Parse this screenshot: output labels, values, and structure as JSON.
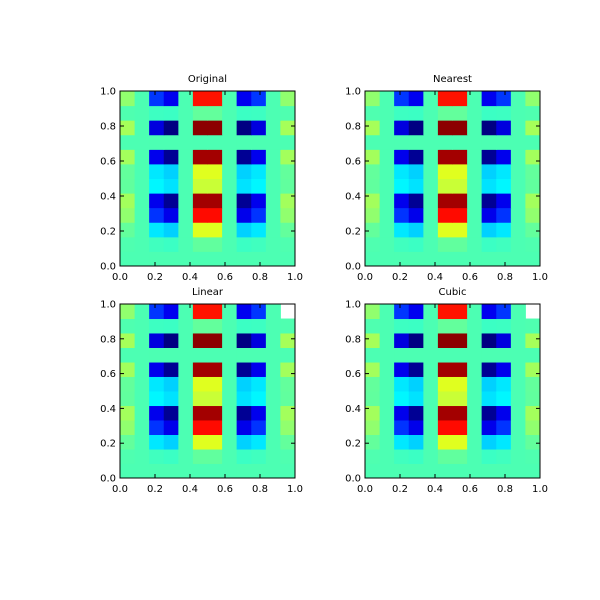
{
  "chart_data": [
    {
      "type": "heatmap",
      "title": "Original",
      "colormap": "jet",
      "zlim": [
        -0.18,
        0.22
      ],
      "x": [
        0.042,
        0.125,
        0.208,
        0.292,
        0.375,
        0.458,
        0.542,
        0.625,
        0.708,
        0.792,
        0.875,
        0.958
      ],
      "y": [
        0.042,
        0.125,
        0.208,
        0.292,
        0.375,
        0.458,
        0.542,
        0.625,
        0.708,
        0.792,
        0.875,
        0.958
      ],
      "z": [
        [
          0,
          0,
          0,
          0,
          0,
          0,
          0,
          0,
          0,
          0,
          0,
          0
        ],
        [
          0.001,
          0,
          -0.005,
          -0.007,
          0,
          0.008,
          0.008,
          0,
          -0.007,
          -0.005,
          0,
          0.001
        ],
        [
          0.009,
          0,
          -0.039,
          -0.048,
          0,
          0.058,
          0.058,
          0,
          -0.048,
          -0.039,
          0,
          0.009
        ],
        [
          0.027,
          0,
          -0.11,
          -0.138,
          0,
          0.166,
          0.166,
          0,
          -0.138,
          -0.11,
          0,
          0.027
        ],
        [
          0.034,
          0,
          -0.137,
          -0.172,
          0,
          0.206,
          0.206,
          0,
          -0.172,
          -0.137,
          0,
          0.034
        ],
        [
          0.008,
          0,
          -0.033,
          -0.041,
          0,
          0.049,
          0.049,
          0,
          -0.041,
          -0.033,
          0,
          0.008
        ],
        [
          0.009,
          0,
          -0.039,
          -0.048,
          0,
          0.058,
          0.058,
          0,
          -0.048,
          -0.039,
          0,
          0.009
        ],
        [
          0.034,
          0,
          -0.137,
          -0.172,
          0,
          0.206,
          0.206,
          0,
          -0.172,
          -0.137,
          0,
          0.034
        ],
        [
          0,
          0,
          0,
          0,
          0,
          0,
          0,
          0,
          0,
          0,
          0,
          0
        ],
        [
          0.035,
          0,
          -0.143,
          -0.179,
          0,
          0.215,
          0.215,
          0,
          -0.179,
          -0.143,
          0,
          0.035
        ],
        [
          0.001,
          0,
          -0.006,
          -0.007,
          0,
          0.009,
          0.009,
          0,
          -0.007,
          -0.006,
          0,
          0.001
        ],
        [
          0.027,
          0,
          -0.109,
          -0.136,
          0,
          0.163,
          0.163,
          0,
          -0.136,
          -0.109,
          0,
          0.027
        ]
      ],
      "xlim": [
        0,
        1
      ],
      "ylim": [
        0,
        1
      ],
      "xticks": [
        {
          "value": 0,
          "label": "0.0"
        },
        {
          "value": 0.2,
          "label": "0.2"
        },
        {
          "value": 0.4,
          "label": "0.4"
        },
        {
          "value": 0.6,
          "label": "0.6"
        },
        {
          "value": 0.8,
          "label": "0.8"
        },
        {
          "value": 1,
          "label": "1.0"
        }
      ],
      "yticks": [
        {
          "value": 0,
          "label": "0.0"
        },
        {
          "value": 0.2,
          "label": "0.2"
        },
        {
          "value": 0.4,
          "label": "0.4"
        },
        {
          "value": 0.6,
          "label": "0.6"
        },
        {
          "value": 0.8,
          "label": "0.8"
        },
        {
          "value": 1,
          "label": "1.0"
        }
      ]
    },
    {
      "type": "heatmap",
      "title": "Nearest",
      "colormap": "jet",
      "zlim": [
        -0.18,
        0.22
      ],
      "x": [
        0.042,
        0.125,
        0.208,
        0.292,
        0.375,
        0.458,
        0.542,
        0.625,
        0.708,
        0.792,
        0.875,
        0.958
      ],
      "y": [
        0.042,
        0.125,
        0.208,
        0.292,
        0.375,
        0.458,
        0.542,
        0.625,
        0.708,
        0.792,
        0.875,
        0.958
      ],
      "z": [
        [
          0,
          0,
          0,
          0,
          0,
          0,
          0,
          0,
          0,
          0,
          0,
          0
        ],
        [
          0.001,
          0,
          -0.005,
          -0.007,
          0,
          0.008,
          0.008,
          0,
          -0.007,
          -0.005,
          0,
          0.001
        ],
        [
          0.009,
          0,
          -0.039,
          -0.048,
          0,
          0.058,
          0.058,
          0,
          -0.048,
          -0.039,
          0,
          0.009
        ],
        [
          0.027,
          0,
          -0.11,
          -0.138,
          0,
          0.166,
          0.166,
          0,
          -0.138,
          -0.11,
          0,
          0.027
        ],
        [
          0.034,
          0,
          -0.137,
          -0.172,
          0,
          0.206,
          0.206,
          0,
          -0.172,
          -0.137,
          0,
          0.034
        ],
        [
          0.008,
          0,
          -0.033,
          -0.041,
          0,
          0.049,
          0.049,
          0,
          -0.041,
          -0.033,
          0,
          0.008
        ],
        [
          0.009,
          0,
          -0.039,
          -0.048,
          0,
          0.058,
          0.058,
          0,
          -0.048,
          -0.039,
          0,
          0.009
        ],
        [
          0.034,
          0,
          -0.137,
          -0.172,
          0,
          0.206,
          0.206,
          0,
          -0.172,
          -0.137,
          0,
          0.034
        ],
        [
          0,
          0,
          0,
          0,
          0,
          0,
          0,
          0,
          0,
          0,
          0,
          0
        ],
        [
          0.035,
          0,
          -0.143,
          -0.179,
          0,
          0.215,
          0.215,
          0,
          -0.179,
          -0.143,
          0,
          0.035
        ],
        [
          0.001,
          0,
          -0.006,
          -0.007,
          0,
          0.009,
          0.009,
          0,
          -0.007,
          -0.006,
          0,
          0.001
        ],
        [
          0.027,
          0,
          -0.109,
          -0.136,
          0,
          0.163,
          0.163,
          0,
          -0.136,
          -0.109,
          0,
          0.027
        ]
      ],
      "xlim": [
        0,
        1
      ],
      "ylim": [
        0,
        1
      ],
      "xticks": [
        {
          "value": 0,
          "label": "0.0"
        },
        {
          "value": 0.2,
          "label": "0.2"
        },
        {
          "value": 0.4,
          "label": "0.4"
        },
        {
          "value": 0.6,
          "label": "0.6"
        },
        {
          "value": 0.8,
          "label": "0.8"
        },
        {
          "value": 1,
          "label": "1.0"
        }
      ],
      "yticks": [
        {
          "value": 0,
          "label": "0.0"
        },
        {
          "value": 0.2,
          "label": "0.2"
        },
        {
          "value": 0.4,
          "label": "0.4"
        },
        {
          "value": 0.6,
          "label": "0.6"
        },
        {
          "value": 0.8,
          "label": "0.8"
        },
        {
          "value": 1,
          "label": "1.0"
        }
      ]
    },
    {
      "type": "heatmap",
      "title": "Linear",
      "colormap": "jet",
      "zlim": [
        -0.18,
        0.22
      ],
      "x": [
        0.042,
        0.125,
        0.208,
        0.292,
        0.375,
        0.458,
        0.542,
        0.625,
        0.708,
        0.792,
        0.875,
        0.958
      ],
      "y": [
        0.042,
        0.125,
        0.208,
        0.292,
        0.375,
        0.458,
        0.542,
        0.625,
        0.708,
        0.792,
        0.875,
        0.958
      ],
      "z": [
        [
          0,
          0,
          0,
          0,
          0,
          0,
          0,
          0,
          0,
          0,
          0,
          0
        ],
        [
          0.001,
          0,
          -0.005,
          -0.007,
          0,
          0.008,
          0.008,
          0,
          -0.007,
          -0.005,
          0,
          0.001
        ],
        [
          0.009,
          0,
          -0.039,
          -0.048,
          0,
          0.058,
          0.058,
          0,
          -0.048,
          -0.039,
          0,
          0.009
        ],
        [
          0.027,
          0,
          -0.11,
          -0.138,
          0,
          0.166,
          0.166,
          0,
          -0.138,
          -0.11,
          0,
          0.027
        ],
        [
          0.034,
          0,
          -0.137,
          -0.172,
          0,
          0.206,
          0.206,
          0,
          -0.172,
          -0.137,
          0,
          0.034
        ],
        [
          0.008,
          0,
          -0.033,
          -0.041,
          0,
          0.049,
          0.049,
          0,
          -0.041,
          -0.033,
          0,
          0.008
        ],
        [
          0.009,
          0,
          -0.039,
          -0.048,
          0,
          0.058,
          0.058,
          0,
          -0.048,
          -0.039,
          0,
          0.009
        ],
        [
          0.034,
          0,
          -0.137,
          -0.172,
          0,
          0.206,
          0.206,
          0,
          -0.172,
          -0.137,
          0,
          0.034
        ],
        [
          0,
          0,
          0,
          0,
          0,
          0,
          0,
          0,
          0,
          0,
          0,
          0
        ],
        [
          0.035,
          0,
          -0.143,
          -0.179,
          0,
          0.215,
          0.215,
          0,
          -0.179,
          -0.143,
          0,
          0.035
        ],
        [
          0.001,
          0,
          -0.006,
          -0.007,
          0,
          0.009,
          0.009,
          0,
          -0.007,
          -0.006,
          0,
          0.001
        ],
        [
          0.027,
          0,
          -0.109,
          -0.136,
          0,
          0.163,
          0.163,
          0,
          -0.136,
          -0.109,
          0,
          null
        ]
      ],
      "xlim": [
        0,
        1
      ],
      "ylim": [
        0,
        1
      ],
      "xticks": [
        {
          "value": 0,
          "label": "0.0"
        },
        {
          "value": 0.2,
          "label": "0.2"
        },
        {
          "value": 0.4,
          "label": "0.4"
        },
        {
          "value": 0.6,
          "label": "0.6"
        },
        {
          "value": 0.8,
          "label": "0.8"
        },
        {
          "value": 1,
          "label": "1.0"
        }
      ],
      "yticks": [
        {
          "value": 0,
          "label": "0.0"
        },
        {
          "value": 0.2,
          "label": "0.2"
        },
        {
          "value": 0.4,
          "label": "0.4"
        },
        {
          "value": 0.6,
          "label": "0.6"
        },
        {
          "value": 0.8,
          "label": "0.8"
        },
        {
          "value": 1,
          "label": "1.0"
        }
      ]
    },
    {
      "type": "heatmap",
      "title": "Cubic",
      "colormap": "jet",
      "zlim": [
        -0.18,
        0.22
      ],
      "x": [
        0.042,
        0.125,
        0.208,
        0.292,
        0.375,
        0.458,
        0.542,
        0.625,
        0.708,
        0.792,
        0.875,
        0.958
      ],
      "y": [
        0.042,
        0.125,
        0.208,
        0.292,
        0.375,
        0.458,
        0.542,
        0.625,
        0.708,
        0.792,
        0.875,
        0.958
      ],
      "z": [
        [
          0,
          0,
          0,
          0,
          0,
          0,
          0,
          0,
          0,
          0,
          0,
          0
        ],
        [
          0.001,
          0,
          -0.005,
          -0.007,
          0,
          0.008,
          0.008,
          0,
          -0.007,
          -0.005,
          0,
          0.001
        ],
        [
          0.009,
          0,
          -0.039,
          -0.048,
          0,
          0.058,
          0.058,
          0,
          -0.048,
          -0.039,
          0,
          0.009
        ],
        [
          0.027,
          0,
          -0.11,
          -0.138,
          0,
          0.166,
          0.166,
          0,
          -0.138,
          -0.11,
          0,
          0.027
        ],
        [
          0.034,
          0,
          -0.137,
          -0.172,
          0,
          0.206,
          0.206,
          0,
          -0.172,
          -0.137,
          0,
          0.034
        ],
        [
          0.008,
          0,
          -0.033,
          -0.041,
          0,
          0.049,
          0.049,
          0,
          -0.041,
          -0.033,
          0,
          0.008
        ],
        [
          0.009,
          0,
          -0.039,
          -0.048,
          0,
          0.058,
          0.058,
          0,
          -0.048,
          -0.039,
          0,
          0.009
        ],
        [
          0.034,
          0,
          -0.137,
          -0.172,
          0,
          0.206,
          0.206,
          0,
          -0.172,
          -0.137,
          0,
          0.034
        ],
        [
          0,
          0,
          0,
          0,
          0,
          0,
          0,
          0,
          0,
          0,
          0,
          0
        ],
        [
          0.035,
          0,
          -0.143,
          -0.179,
          0,
          0.215,
          0.215,
          0,
          -0.179,
          -0.143,
          0,
          0.035
        ],
        [
          0.001,
          0,
          -0.006,
          -0.007,
          0,
          0.009,
          0.009,
          0,
          -0.007,
          -0.006,
          0,
          0.001
        ],
        [
          0.027,
          0,
          -0.109,
          -0.136,
          0,
          0.163,
          0.163,
          0,
          -0.136,
          -0.109,
          0,
          null
        ]
      ],
      "xlim": [
        0,
        1
      ],
      "ylim": [
        0,
        1
      ],
      "xticks": [
        {
          "value": 0,
          "label": "0.0"
        },
        {
          "value": 0.2,
          "label": "0.2"
        },
        {
          "value": 0.4,
          "label": "0.4"
        },
        {
          "value": 0.6,
          "label": "0.6"
        },
        {
          "value": 0.8,
          "label": "0.8"
        },
        {
          "value": 1,
          "label": "1.0"
        }
      ],
      "yticks": [
        {
          "value": 0,
          "label": "0.0"
        },
        {
          "value": 0.2,
          "label": "0.2"
        },
        {
          "value": 0.4,
          "label": "0.4"
        },
        {
          "value": 0.6,
          "label": "0.6"
        },
        {
          "value": 0.8,
          "label": "0.8"
        },
        {
          "value": 1,
          "label": "1.0"
        }
      ]
    }
  ]
}
